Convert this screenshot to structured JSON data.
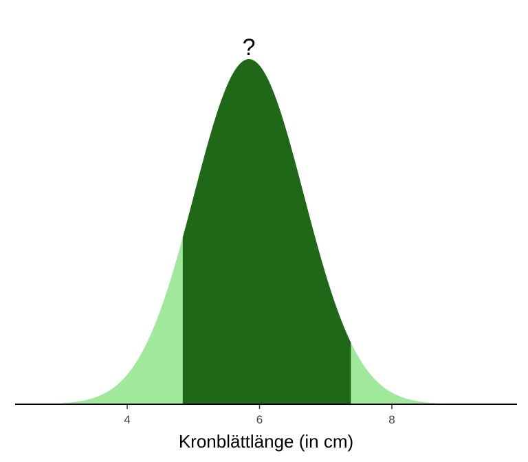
{
  "chart_data": {
    "type": "area",
    "distribution": "normal",
    "mean": 5.84,
    "sd": 0.83,
    "x_range": [
      2.5,
      9.75
    ],
    "xlabel": "Kronblättlänge (in cm)",
    "xticks": [
      4,
      6,
      8
    ],
    "peak_annotation": "?",
    "highlight_interval": [
      4.84,
      7.38
    ],
    "colors": {
      "tails": "#a0e89c",
      "highlight": "#1f6818",
      "axis": "#000000"
    },
    "grid": false,
    "y_axis_visible": false
  }
}
